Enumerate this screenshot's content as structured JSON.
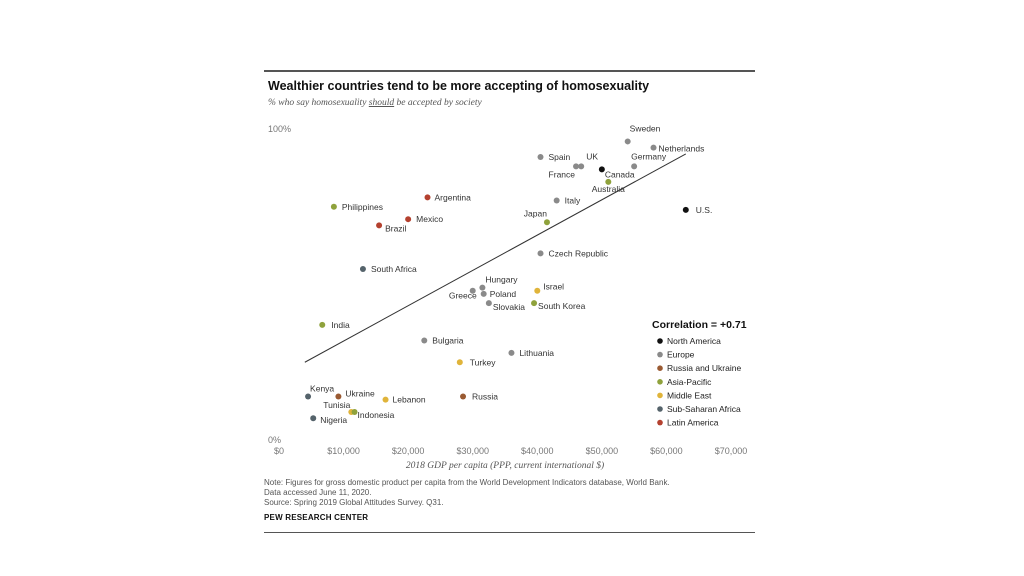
{
  "title": "Wealthier countries tend to be more accepting of homosexuality",
  "subtitle_pre": "% who say homosexuality ",
  "subtitle_em": "should",
  "subtitle_post": " be accepted by society",
  "notes": {
    "line1": "Note: Figures for gross domestic product per capita from the World Development Indicators database, World Bank.",
    "line2": "Data accessed June 11, 2020.",
    "line3": "Source: Spring 2019 Global Attitudes Survey. Q31."
  },
  "brand": "PEW RESEARCH CENTER",
  "colors": {
    "North America": "#111111",
    "Europe": "#8a8a8a",
    "Russia and Ukraine": "#9a5a32",
    "Asia-Pacific": "#8fa23c",
    "Middle East": "#e0b43a",
    "Sub-Saharan Africa": "#55636b",
    "Latin America": "#b4412f"
  },
  "chart_data": {
    "type": "scatter",
    "xlabel": "2018 GDP per capita (PPP, current international $)",
    "ylabel": "",
    "xlim": [
      0,
      70000
    ],
    "ylim": [
      0,
      100
    ],
    "x_ticks": [
      {
        "value": 0,
        "label": "$0"
      },
      {
        "value": 10000,
        "label": "$10,000"
      },
      {
        "value": 20000,
        "label": "$20,000"
      },
      {
        "value": 30000,
        "label": "$30,000"
      },
      {
        "value": 40000,
        "label": "$40,000"
      },
      {
        "value": 50000,
        "label": "$50,000"
      },
      {
        "value": 60000,
        "label": "$60,000"
      },
      {
        "value": 70000,
        "label": "$70,000"
      }
    ],
    "y_ticks": [
      {
        "value": 100,
        "label": "100%"
      },
      {
        "value": 0,
        "label": "0%"
      }
    ],
    "correlation_label": "Correlation = +0.71",
    "trendline": [
      [
        4000,
        25
      ],
      [
        63000,
        92
      ]
    ],
    "legend": [
      "North America",
      "Europe",
      "Russia and Ukraine",
      "Asia-Pacific",
      "Middle East",
      "Sub-Saharan Africa",
      "Latin America"
    ],
    "points": [
      {
        "country": "Sweden",
        "region": "Europe",
        "x": 54000,
        "y": 96
      },
      {
        "country": "Netherlands",
        "region": "Europe",
        "x": 58000,
        "y": 94
      },
      {
        "country": "Spain",
        "region": "Europe",
        "x": 40500,
        "y": 91
      },
      {
        "country": "UK",
        "region": "Europe",
        "x": 46800,
        "y": 88
      },
      {
        "country": "France",
        "region": "Europe",
        "x": 46000,
        "y": 88
      },
      {
        "country": "Germany",
        "region": "Europe",
        "x": 55000,
        "y": 88
      },
      {
        "country": "Canada",
        "region": "North America",
        "x": 50000,
        "y": 87
      },
      {
        "country": "Australia",
        "region": "Asia-Pacific",
        "x": 51000,
        "y": 83
      },
      {
        "country": "Italy",
        "region": "Europe",
        "x": 43000,
        "y": 77
      },
      {
        "country": "U.S.",
        "region": "North America",
        "x": 63000,
        "y": 74
      },
      {
        "country": "Japan",
        "region": "Asia-Pacific",
        "x": 41500,
        "y": 70
      },
      {
        "country": "Argentina",
        "region": "Latin America",
        "x": 23000,
        "y": 78
      },
      {
        "country": "Philippines",
        "region": "Asia-Pacific",
        "x": 8500,
        "y": 75
      },
      {
        "country": "Mexico",
        "region": "Latin America",
        "x": 20000,
        "y": 71
      },
      {
        "country": "Brazil",
        "region": "Latin America",
        "x": 15500,
        "y": 69
      },
      {
        "country": "Czech Republic",
        "region": "Europe",
        "x": 40500,
        "y": 60
      },
      {
        "country": "South Africa",
        "region": "Sub-Saharan Africa",
        "x": 13000,
        "y": 55
      },
      {
        "country": "Hungary",
        "region": "Europe",
        "x": 31500,
        "y": 49
      },
      {
        "country": "Poland",
        "region": "Europe",
        "x": 31700,
        "y": 47
      },
      {
        "country": "Greece",
        "region": "Europe",
        "x": 30000,
        "y": 48
      },
      {
        "country": "Slovakia",
        "region": "Europe",
        "x": 32500,
        "y": 44
      },
      {
        "country": "Israel",
        "region": "Middle East",
        "x": 40000,
        "y": 48
      },
      {
        "country": "South Korea",
        "region": "Asia-Pacific",
        "x": 39500,
        "y": 44
      },
      {
        "country": "India",
        "region": "Asia-Pacific",
        "x": 6700,
        "y": 37
      },
      {
        "country": "Bulgaria",
        "region": "Europe",
        "x": 22500,
        "y": 32
      },
      {
        "country": "Lithuania",
        "region": "Europe",
        "x": 36000,
        "y": 28
      },
      {
        "country": "Turkey",
        "region": "Middle East",
        "x": 28000,
        "y": 25
      },
      {
        "country": "Kenya",
        "region": "Sub-Saharan Africa",
        "x": 4500,
        "y": 14
      },
      {
        "country": "Ukraine",
        "region": "Russia and Ukraine",
        "x": 9200,
        "y": 14
      },
      {
        "country": "Lebanon",
        "region": "Middle East",
        "x": 16500,
        "y": 13
      },
      {
        "country": "Russia",
        "region": "Russia and Ukraine",
        "x": 28500,
        "y": 14
      },
      {
        "country": "Tunisia",
        "region": "Middle East",
        "x": 11200,
        "y": 9
      },
      {
        "country": "Indonesia",
        "region": "Asia-Pacific",
        "x": 11700,
        "y": 9
      },
      {
        "country": "Nigeria",
        "region": "Sub-Saharan Africa",
        "x": 5300,
        "y": 7
      }
    ]
  }
}
